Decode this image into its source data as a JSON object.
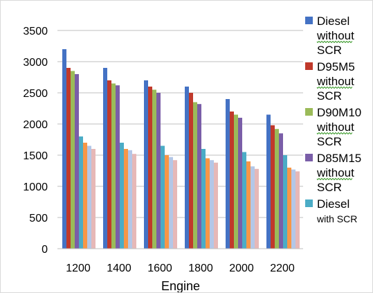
{
  "chart_data": {
    "type": "bar",
    "title": "",
    "xlabel": "Engine",
    "ylabel": "",
    "ylim": [
      0,
      3500
    ],
    "y_ticks": [
      0,
      500,
      1000,
      1500,
      2000,
      2500,
      3000,
      3500
    ],
    "grid": "horizontal",
    "legend_position": "right",
    "categories": [
      "1200",
      "1400",
      "1600",
      "1800",
      "2000",
      "2200"
    ],
    "series": [
      {
        "legend_lines": [
          "Diesel",
          "without",
          "SCR"
        ],
        "color": "#4472C4",
        "values": [
          3200,
          2900,
          2700,
          2600,
          2400,
          2150
        ]
      },
      {
        "legend_lines": [
          "D95M5",
          "without",
          "SCR"
        ],
        "color": "#C0392B",
        "values": [
          2900,
          2700,
          2600,
          2500,
          2200,
          1980
        ]
      },
      {
        "legend_lines": [
          "D90M10",
          "without",
          "SCR"
        ],
        "color": "#9BBB59",
        "values": [
          2850,
          2650,
          2550,
          2350,
          2150,
          1920
        ]
      },
      {
        "legend_lines": [
          "D85M15",
          "without",
          "SCR"
        ],
        "color": "#7A5EA8",
        "values": [
          2800,
          2620,
          2500,
          2320,
          2100,
          1850
        ]
      },
      {
        "legend_lines": [
          "Diesel",
          "with SCR"
        ],
        "color": "#4BACC6",
        "values": [
          1800,
          1700,
          1650,
          1600,
          1550,
          1500
        ]
      },
      {
        "legend_lines": [],
        "color": "#F79646",
        "values": [
          1700,
          1600,
          1500,
          1450,
          1400,
          1300
        ]
      },
      {
        "legend_lines": [],
        "color": "#B4C7E7",
        "values": [
          1650,
          1580,
          1470,
          1420,
          1320,
          1270
        ]
      },
      {
        "legend_lines": [],
        "color": "#E6B8B7",
        "values": [
          1600,
          1520,
          1420,
          1380,
          1280,
          1240
        ]
      }
    ]
  }
}
